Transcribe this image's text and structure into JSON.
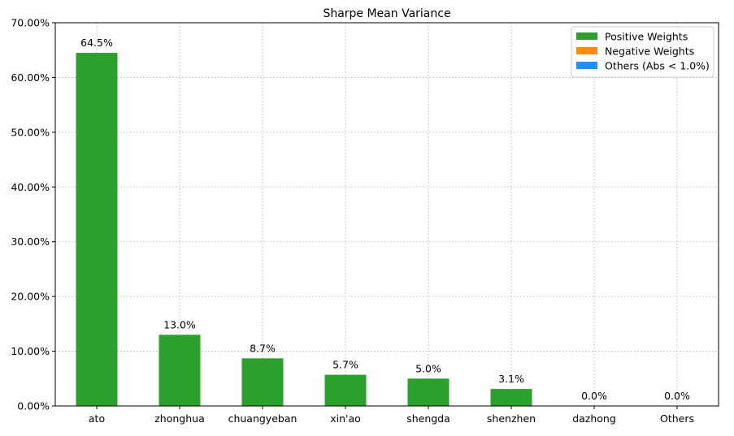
{
  "chart_data": {
    "type": "bar",
    "title": "Sharpe Mean Variance",
    "xlabel": "",
    "ylabel": "",
    "categories": [
      "ato",
      "zhonghua",
      "chuangyeban",
      "xin'ao",
      "shengda",
      "shenzhen",
      "dazhong",
      "Others"
    ],
    "values": [
      64.5,
      13.0,
      8.7,
      5.7,
      5.0,
      3.1,
      0.0,
      0.0
    ],
    "data_labels": [
      "64.5%",
      "13.0%",
      "8.7%",
      "5.7%",
      "5.0%",
      "3.1%",
      "0.0%",
      "0.0%"
    ],
    "ylim": [
      0,
      70
    ],
    "yticks": [
      0,
      10,
      20,
      30,
      40,
      50,
      60,
      70
    ],
    "ytick_labels": [
      "0.00%",
      "10.00%",
      "20.00%",
      "30.00%",
      "40.00%",
      "50.00%",
      "60.00%",
      "70.00%"
    ],
    "grid": true,
    "bar_color": "#2ca02c",
    "legend": {
      "placement": "top-right",
      "entries": [
        {
          "label": "Positive Weights",
          "color": "#2ca02c"
        },
        {
          "label": "Negative Weights",
          "color": "#ff8c00"
        },
        {
          "label": "Others (Abs < 1.0%)",
          "color": "#1e90ff"
        }
      ]
    }
  }
}
